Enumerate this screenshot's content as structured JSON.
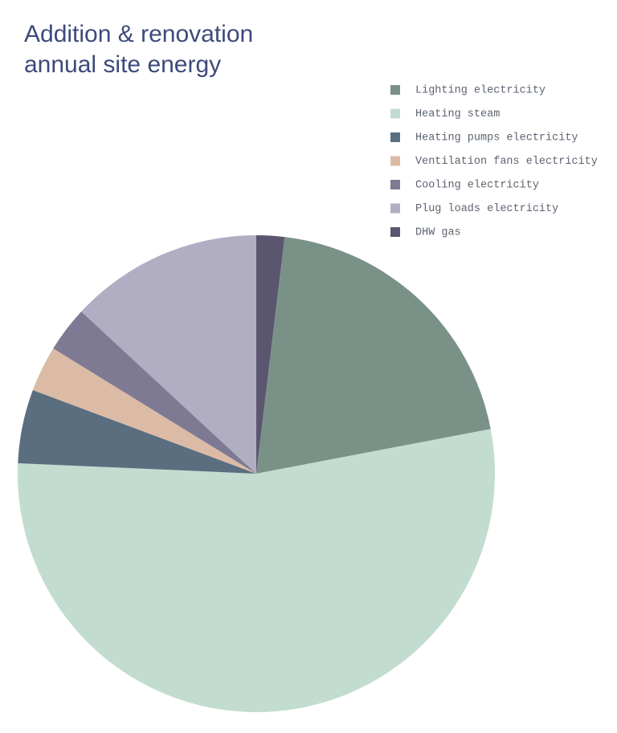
{
  "chart_data": {
    "type": "pie",
    "title": [
      "Addition & renovation",
      "annual site energy"
    ],
    "categories": [
      "Lighting electricity",
      "Heating steam",
      "Heating pumps electricity",
      "Ventilation fans electricity",
      "Cooling electricity",
      "Plug loads electricity",
      "DHW gas"
    ],
    "values": [
      20.1,
      53.7,
      5.0,
      3.1,
      3.1,
      13.1,
      1.9
    ],
    "colors": [
      "#7a9188",
      "#c2dcd0",
      "#5a6e80",
      "#dcbba6",
      "#7f7a93",
      "#b1aec4",
      "#5b5670"
    ],
    "legend": "upper right"
  }
}
